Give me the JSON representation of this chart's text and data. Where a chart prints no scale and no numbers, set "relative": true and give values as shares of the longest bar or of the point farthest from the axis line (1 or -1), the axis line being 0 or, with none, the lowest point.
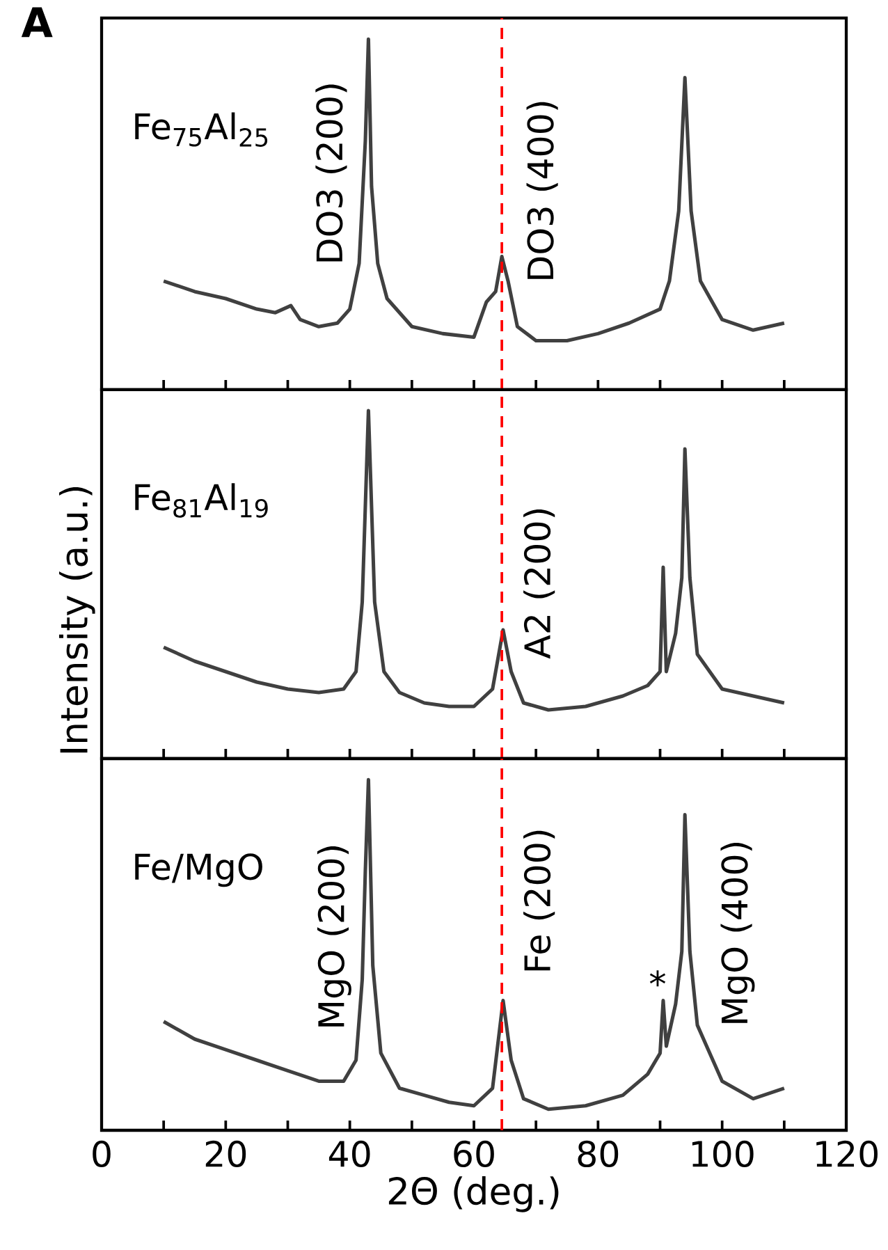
{
  "chart_data": [
    {
      "type": "line",
      "title": "A",
      "relative": true,
      "xlim": [
        0,
        120
      ],
      "xticks": [
        0,
        {
          "value": 10,
          "label": null
        },
        20,
        {
          "value": 30,
          "label": null
        },
        40,
        {
          "value": 50,
          "label": null
        },
        60,
        {
          "value": 70,
          "label": null
        },
        80,
        {
          "value": 90,
          "label": null
        },
        100,
        {
          "value": 110,
          "label": null
        },
        120
      ],
      "tick_labels": false,
      "x": [
        10,
        15,
        20,
        25,
        28,
        30.5,
        32,
        35,
        38,
        40,
        41.5,
        42.5,
        43,
        43.5,
        44.5,
        46,
        50,
        55,
        60,
        62,
        63.5,
        64.5,
        65.5,
        67,
        70,
        75,
        80,
        85,
        90,
        91.5,
        93,
        94,
        95,
        96.5,
        100,
        105,
        110
      ],
      "series": [
        {
          "color": "#404040",
          "values": [
            0.31,
            0.28,
            0.26,
            0.23,
            0.22,
            0.24,
            0.2,
            0.18,
            0.19,
            0.23,
            0.36,
            0.71,
            1,
            0.58,
            0.36,
            0.26,
            0.18,
            0.16,
            0.15,
            0.25,
            0.28,
            0.38,
            0.31,
            0.18,
            0.14,
            0.14,
            0.16,
            0.19,
            0.23,
            0.31,
            0.51,
            0.89,
            0.51,
            0.31,
            0.2,
            0.17,
            0.19
          ]
        }
      ],
      "ref_lines": [
        {
          "axis": "x",
          "value": 64.5,
          "color": "#ff0000",
          "line_style": "dashed"
        }
      ],
      "annotations": [
        "Fe$_{75}$Al$_{25}$",
        "DO3 (200)",
        "DO3 (400)"
      ]
    },
    {
      "type": "line",
      "ylabel": "Intensity (a.u.)",
      "relative": true,
      "xlim": [
        0,
        120
      ],
      "xticks": [
        0,
        {
          "value": 10,
          "label": null
        },
        20,
        {
          "value": 30,
          "label": null
        },
        40,
        {
          "value": 50,
          "label": null
        },
        60,
        {
          "value": 70,
          "label": null
        },
        80,
        {
          "value": 90,
          "label": null
        },
        100,
        {
          "value": 110,
          "label": null
        },
        120
      ],
      "tick_labels": false,
      "x": [
        10,
        15,
        20,
        25,
        30,
        35,
        39,
        41,
        42,
        43,
        44,
        45.5,
        48,
        52,
        56,
        60,
        63,
        64.7,
        66,
        68,
        72,
        78,
        84,
        88,
        90,
        90.5,
        91,
        92.5,
        93.5,
        94,
        94.8,
        96,
        100,
        105,
        110
      ],
      "series": [
        {
          "color": "#404040",
          "values": [
            0.32,
            0.28,
            0.25,
            0.22,
            0.2,
            0.19,
            0.2,
            0.25,
            0.45,
            1,
            0.45,
            0.25,
            0.19,
            0.16,
            0.15,
            0.15,
            0.2,
            0.37,
            0.25,
            0.16,
            0.14,
            0.15,
            0.18,
            0.21,
            0.25,
            0.55,
            0.25,
            0.36,
            0.52,
            0.89,
            0.52,
            0.3,
            0.2,
            0.18,
            0.16
          ]
        }
      ],
      "ref_lines": [
        {
          "axis": "x",
          "value": 64.5,
          "color": "#ff0000",
          "line_style": "dashed"
        }
      ],
      "annotations": [
        "Fe$_{81}$Al$_{19}$",
        "A2 (200)"
      ]
    },
    {
      "type": "line",
      "xlabel": "2Θ (deg.)",
      "relative": true,
      "xlim": [
        0,
        120
      ],
      "xticks": [
        0,
        {
          "value": 10,
          "label": null
        },
        20,
        {
          "value": 30,
          "label": null
        },
        40,
        {
          "value": 50,
          "label": null
        },
        60,
        {
          "value": 70,
          "label": null
        },
        80,
        {
          "value": 90,
          "label": null
        },
        100,
        {
          "value": 110,
          "label": null
        },
        120
      ],
      "tick_labels": "x",
      "x": [
        10,
        15,
        20,
        25,
        30,
        35,
        39,
        41,
        42,
        42.5,
        43,
        43.7,
        45,
        48,
        52,
        56,
        60,
        63,
        64.7,
        66,
        68,
        72,
        78,
        84,
        88,
        90,
        90.5,
        91,
        92.5,
        93.5,
        94,
        94.8,
        96,
        100,
        105,
        110
      ],
      "series": [
        {
          "color": "#404040",
          "values": [
            0.31,
            0.26,
            0.23,
            0.2,
            0.17,
            0.14,
            0.14,
            0.2,
            0.43,
            0.74,
            1,
            0.47,
            0.22,
            0.12,
            0.1,
            0.08,
            0.07,
            0.12,
            0.37,
            0.2,
            0.09,
            0.06,
            0.07,
            0.1,
            0.16,
            0.22,
            0.37,
            0.24,
            0.36,
            0.51,
            0.9,
            0.51,
            0.3,
            0.14,
            0.09,
            0.12
          ]
        }
      ],
      "ref_lines": [
        {
          "axis": "x",
          "value": 64.5,
          "color": "#ff0000",
          "line_style": "dashed"
        }
      ],
      "annotations": [
        "Fe/MgO",
        "MgO (200)",
        "Fe (200)",
        {
          "text": "*",
          "x": 90.5,
          "y": 0.37
        },
        "MgO (400)"
      ]
    }
  ]
}
